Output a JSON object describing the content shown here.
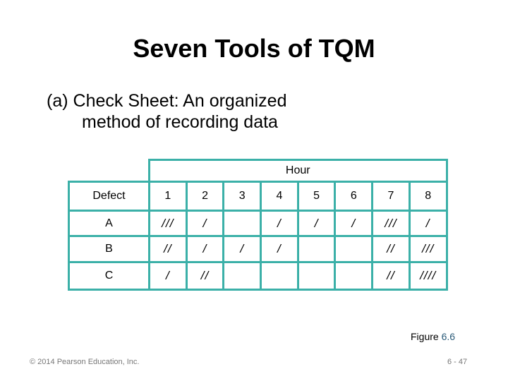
{
  "title": "Seven Tools of TQM",
  "subtitle": {
    "label": "(a)",
    "line1": "Check Sheet: An organized",
    "line2": "method of recording data"
  },
  "table": {
    "group_header": "Hour",
    "row_header": "Defect",
    "hours": [
      "1",
      "2",
      "3",
      "4",
      "5",
      "6",
      "7",
      "8"
    ],
    "rows": [
      {
        "defect": "A",
        "tallies": [
          "///",
          "/",
          "",
          "/",
          "/",
          "/",
          "///",
          "/"
        ]
      },
      {
        "defect": "B",
        "tallies": [
          "//",
          "/",
          "/",
          "/",
          "",
          "",
          "//",
          "///"
        ]
      },
      {
        "defect": "C",
        "tallies": [
          "/",
          "//",
          "",
          "",
          "",
          "",
          "//",
          "////"
        ]
      }
    ],
    "border_color": "#3bb0a8"
  },
  "figure": {
    "prefix": "Figure",
    "number": "6.6"
  },
  "footer": {
    "copyright": "© 2014 Pearson Education, Inc.",
    "page": "6 - 47"
  }
}
